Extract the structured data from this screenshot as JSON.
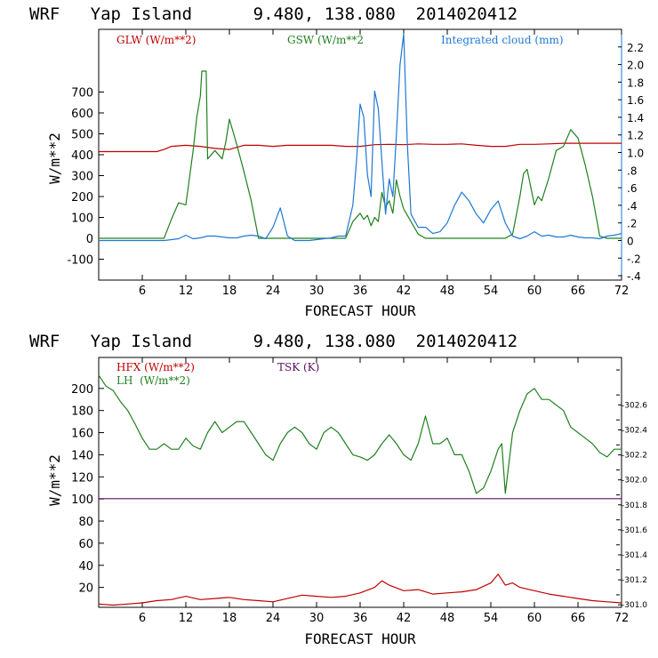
{
  "chart_data": [
    {
      "type": "line",
      "title": "WRF   Yap Island      9.480, 138.080  2014020412",
      "xlabel": "FORECAST HOUR",
      "ylabel": "W/m**2",
      "xlim": [
        0,
        72
      ],
      "ylim": [
        -200,
        1000
      ],
      "x_ticks": [
        "6",
        "12",
        "18",
        "24",
        "30",
        "36",
        "42",
        "48",
        "54",
        "60",
        "66",
        "72"
      ],
      "y_ticks": [
        "-100",
        "0",
        "100",
        "200",
        "300",
        "400",
        "500",
        "600",
        "700"
      ],
      "y2_ticks": [
        "-.4",
        "-.2",
        "0",
        ".2",
        ".4",
        ".6",
        ".8",
        "1.0",
        "1.2",
        "1.4",
        "1.6",
        "1.8",
        "2.0",
        "2.2"
      ],
      "y2lim": [
        -0.45,
        2.4
      ],
      "series": [
        {
          "name": "GLW (W/m**2)",
          "axis": "left",
          "color": "#c00000",
          "x": [
            0,
            6,
            8,
            9,
            10,
            12,
            14,
            16,
            18,
            20,
            22,
            24,
            26,
            28,
            30,
            32,
            34,
            36,
            38,
            40,
            42,
            44,
            46,
            48,
            50,
            52,
            54,
            56,
            58,
            60,
            62,
            64,
            66,
            68,
            70,
            72
          ],
          "y": [
            415,
            415,
            415,
            425,
            440,
            445,
            440,
            430,
            425,
            445,
            445,
            440,
            445,
            445,
            445,
            445,
            440,
            440,
            448,
            450,
            448,
            452,
            450,
            450,
            452,
            445,
            440,
            440,
            450,
            450,
            452,
            455,
            455,
            455,
            455,
            455
          ]
        },
        {
          "name": "GSW (W/m**2",
          "axis": "left",
          "color": "#208020",
          "x": [
            0,
            9,
            10,
            11,
            12,
            13,
            13.5,
            14,
            14.2,
            14.8,
            15,
            16,
            17,
            17.5,
            18,
            19,
            20,
            21,
            22,
            33,
            34,
            35,
            36,
            36.5,
            37,
            37.5,
            38,
            38.5,
            39,
            39.5,
            40,
            40.5,
            41,
            41.5,
            42,
            43,
            44,
            45,
            46,
            56,
            57,
            58,
            58.5,
            59,
            60,
            60.5,
            61,
            62,
            63,
            64,
            65,
            66,
            67,
            68,
            69,
            70,
            72
          ],
          "y": [
            0,
            0,
            90,
            170,
            160,
            420,
            580,
            680,
            800,
            800,
            380,
            420,
            380,
            460,
            570,
            450,
            320,
            180,
            0,
            0,
            0,
            80,
            120,
            90,
            110,
            60,
            100,
            80,
            220,
            150,
            180,
            120,
            280,
            200,
            140,
            80,
            20,
            0,
            0,
            0,
            20,
            200,
            310,
            330,
            160,
            200,
            180,
            290,
            420,
            440,
            520,
            480,
            350,
            200,
            10,
            0,
            0
          ]
        },
        {
          "name": "Integrated cloud (mm)",
          "axis": "right",
          "color": "#1e78d2",
          "x": [
            0,
            8,
            9,
            10,
            11,
            12,
            13,
            14,
            15,
            16,
            17,
            18,
            19,
            20,
            21,
            22,
            23,
            24,
            25,
            26,
            27,
            28,
            29,
            30,
            31,
            32,
            33,
            34,
            35,
            35.5,
            36,
            36.5,
            37,
            37.5,
            38,
            38.5,
            39,
            39.5,
            40,
            40.5,
            41,
            41.5,
            42,
            42.5,
            43,
            44,
            45,
            46,
            47,
            48,
            49,
            50,
            51,
            52,
            53,
            54,
            55,
            56,
            57,
            58,
            59,
            60,
            61,
            62,
            63,
            64,
            65,
            66,
            67,
            68,
            69,
            70,
            71,
            72
          ],
          "y": [
            0,
            0,
            0,
            0.01,
            0.02,
            0.06,
            0.02,
            0.03,
            0.05,
            0.05,
            0.04,
            0.03,
            0.03,
            0.05,
            0.06,
            0.05,
            0.02,
            0.15,
            0.37,
            0.05,
            0.0,
            0.0,
            0.0,
            0.01,
            0.02,
            0.03,
            0.05,
            0.05,
            0.4,
            0.9,
            1.55,
            1.4,
            0.75,
            0.5,
            1.7,
            1.5,
            0.9,
            0.3,
            0.7,
            0.5,
            1.2,
            2.0,
            2.35,
            1.1,
            0.3,
            0.15,
            0.15,
            0.08,
            0.1,
            0.2,
            0.4,
            0.55,
            0.45,
            0.3,
            0.2,
            0.35,
            0.45,
            0.2,
            0.05,
            0.02,
            0.05,
            0.1,
            0.05,
            0.06,
            0.04,
            0.04,
            0.06,
            0.04,
            0.03,
            0.03,
            0.02,
            0.05,
            0.06,
            0.08
          ]
        }
      ],
      "legend": [
        "GLW (W/m**2)",
        "GSW (W/m**2",
        "Integrated cloud (mm)"
      ]
    },
    {
      "type": "line",
      "title": "WRF   Yap Island      9.480, 138.080  2014020412",
      "xlabel": "FORECAST HOUR",
      "ylabel": "W/m**2",
      "xlim": [
        0,
        72
      ],
      "ylim": [
        2,
        228
      ],
      "x_ticks": [
        "6",
        "12",
        "18",
        "24",
        "30",
        "36",
        "42",
        "48",
        "54",
        "60",
        "66",
        "72"
      ],
      "y_ticks": [
        "20",
        "40",
        "60",
        "80",
        "100",
        "120",
        "140",
        "160",
        "180",
        "200"
      ],
      "y2_ticks": [
        "301.0",
        "301.2",
        "301.4",
        "301.6",
        "301.8",
        "302.0",
        "302.2",
        "302.4",
        "302.6"
      ],
      "y2lim": [
        300.98,
        302.98
      ],
      "series": [
        {
          "name": "HFX (W/m**2)",
          "axis": "left",
          "color": "#c00000",
          "x": [
            0,
            2,
            4,
            6,
            8,
            10,
            12,
            14,
            16,
            18,
            20,
            22,
            24,
            26,
            28,
            30,
            32,
            34,
            36,
            38,
            39,
            40,
            42,
            44,
            46,
            48,
            50,
            52,
            54,
            55,
            56,
            57,
            58,
            60,
            62,
            64,
            66,
            68,
            70,
            72
          ],
          "y": [
            5,
            4,
            5,
            6,
            8,
            9,
            12,
            9,
            10,
            11,
            9,
            8,
            7,
            10,
            13,
            12,
            11,
            12,
            15,
            20,
            26,
            22,
            17,
            18,
            14,
            15,
            16,
            18,
            24,
            32,
            22,
            24,
            20,
            17,
            14,
            12,
            10,
            8,
            7,
            6
          ]
        },
        {
          "name": "LH  (W/m**2)",
          "axis": "left",
          "color": "#208020",
          "x": [
            0,
            1,
            2,
            3,
            4,
            5,
            6,
            7,
            8,
            9,
            10,
            11,
            12,
            13,
            14,
            15,
            16,
            17,
            18,
            19,
            20,
            21,
            22,
            23,
            24,
            25,
            26,
            27,
            28,
            29,
            30,
            31,
            32,
            33,
            34,
            35,
            36,
            37,
            38,
            39,
            40,
            41,
            42,
            43,
            44,
            45,
            46,
            47,
            48,
            49,
            50,
            51,
            52,
            53,
            54,
            55,
            55.5,
            56,
            57,
            58,
            59,
            60,
            61,
            62,
            63,
            64,
            65,
            66,
            67,
            68,
            69,
            70,
            71,
            72
          ],
          "y": [
            212,
            202,
            198,
            188,
            180,
            168,
            155,
            145,
            145,
            150,
            145,
            145,
            155,
            148,
            145,
            160,
            170,
            160,
            165,
            170,
            170,
            160,
            150,
            140,
            135,
            150,
            160,
            165,
            160,
            150,
            145,
            160,
            165,
            160,
            150,
            140,
            138,
            135,
            140,
            150,
            158,
            150,
            140,
            135,
            150,
            175,
            150,
            150,
            155,
            140,
            140,
            125,
            105,
            110,
            125,
            145,
            150,
            105,
            160,
            180,
            195,
            200,
            190,
            190,
            185,
            180,
            165,
            160,
            155,
            150,
            142,
            138,
            145,
            145
          ]
        },
        {
          "name": "TSK (K)",
          "axis": "right",
          "color": "#5a1060",
          "x": [
            0,
            72
          ],
          "y": [
            301.85,
            301.85
          ]
        }
      ],
      "legend": [
        "HFX (W/m**2)",
        "LH  (W/m**2)",
        "TSK (K)"
      ]
    }
  ]
}
